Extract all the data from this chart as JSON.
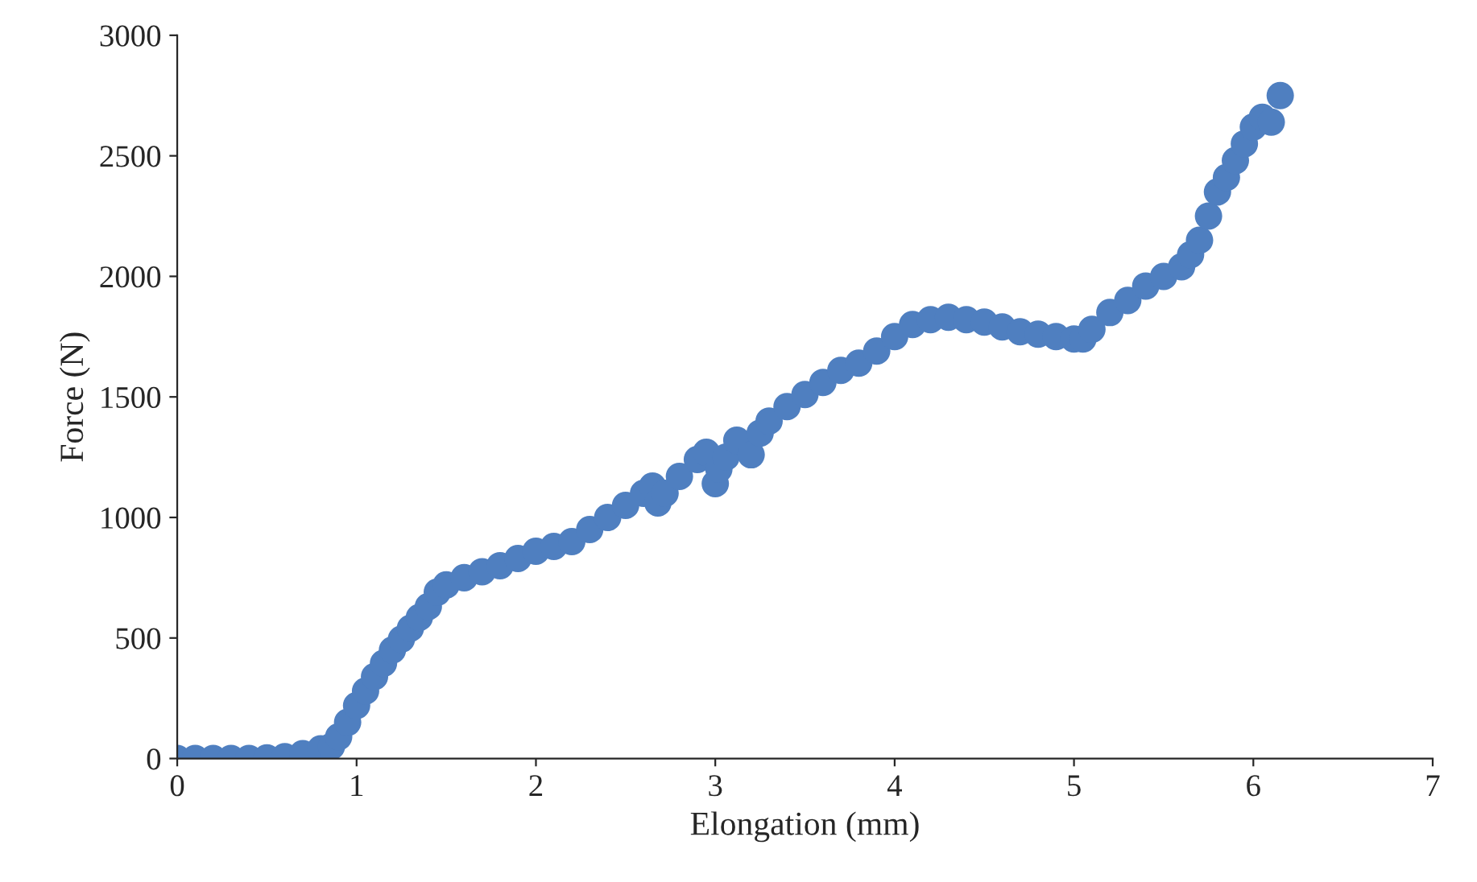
{
  "chart_data": {
    "type": "scatter",
    "xlabel": "Elongation (mm)",
    "ylabel": "Force (N)",
    "xlim": [
      0,
      7
    ],
    "ylim": [
      0,
      3000
    ],
    "xticks": [
      0,
      1,
      2,
      3,
      4,
      5,
      6,
      7
    ],
    "yticks": [
      0,
      500,
      1000,
      1500,
      2000,
      2500,
      3000
    ],
    "grid": false,
    "legend": false,
    "marker": "circle",
    "series": [
      {
        "color": "#4f7fc0",
        "x": [
          0,
          0.1,
          0.2,
          0.3,
          0.4,
          0.5,
          0.6,
          0.7,
          0.8,
          0.86,
          0.9,
          0.95,
          1.0,
          1.05,
          1.1,
          1.15,
          1.2,
          1.25,
          1.3,
          1.35,
          1.4,
          1.45,
          1.5,
          1.6,
          1.7,
          1.8,
          1.9,
          2.0,
          2.1,
          2.2,
          2.3,
          2.4,
          2.5,
          2.6,
          2.65,
          2.68,
          2.72,
          2.8,
          2.9,
          2.95,
          3.0,
          3.02,
          3.06,
          3.12,
          3.2,
          3.25,
          3.3,
          3.4,
          3.5,
          3.6,
          3.7,
          3.8,
          3.9,
          4.0,
          4.1,
          4.2,
          4.3,
          4.4,
          4.5,
          4.6,
          4.7,
          4.8,
          4.9,
          5.0,
          5.05,
          5.1,
          5.2,
          5.3,
          5.4,
          5.5,
          5.6,
          5.65,
          5.7,
          5.75,
          5.8,
          5.85,
          5.9,
          5.95,
          6.0,
          6.05,
          6.1,
          6.15
        ],
        "values": [
          0,
          0,
          0,
          0,
          0,
          3,
          8,
          20,
          40,
          50,
          90,
          150,
          220,
          280,
          340,
          395,
          450,
          495,
          540,
          585,
          630,
          690,
          720,
          750,
          775,
          800,
          830,
          860,
          880,
          900,
          950,
          1000,
          1050,
          1100,
          1130,
          1060,
          1100,
          1170,
          1240,
          1270,
          1140,
          1200,
          1250,
          1320,
          1260,
          1350,
          1400,
          1460,
          1510,
          1560,
          1610,
          1640,
          1690,
          1750,
          1800,
          1820,
          1830,
          1820,
          1810,
          1790,
          1770,
          1760,
          1750,
          1740,
          1740,
          1780,
          1850,
          1900,
          1960,
          2000,
          2040,
          2090,
          2150,
          2250,
          2350,
          2410,
          2480,
          2550,
          2620,
          2660,
          2640,
          2750
        ]
      }
    ]
  }
}
